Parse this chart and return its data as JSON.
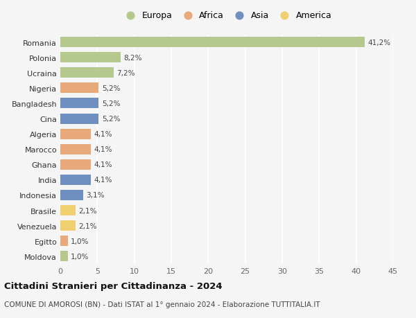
{
  "countries": [
    "Romania",
    "Polonia",
    "Ucraina",
    "Nigeria",
    "Bangladesh",
    "Cina",
    "Algeria",
    "Marocco",
    "Ghana",
    "India",
    "Indonesia",
    "Brasile",
    "Venezuela",
    "Egitto",
    "Moldova"
  ],
  "values": [
    41.2,
    8.2,
    7.2,
    5.2,
    5.2,
    5.2,
    4.1,
    4.1,
    4.1,
    4.1,
    3.1,
    2.1,
    2.1,
    1.0,
    1.0
  ],
  "labels": [
    "41,2%",
    "8,2%",
    "7,2%",
    "5,2%",
    "5,2%",
    "5,2%",
    "4,1%",
    "4,1%",
    "4,1%",
    "4,1%",
    "3,1%",
    "2,1%",
    "2,1%",
    "1,0%",
    "1,0%"
  ],
  "colors": [
    "#b5c98e",
    "#b5c98e",
    "#b5c98e",
    "#e8aa7a",
    "#6e8fc0",
    "#6e8fc0",
    "#e8aa7a",
    "#e8aa7a",
    "#e8aa7a",
    "#6e8fc0",
    "#6e8fc0",
    "#f0d070",
    "#f0d070",
    "#e8aa7a",
    "#b5c98e"
  ],
  "legend_labels": [
    "Europa",
    "Africa",
    "Asia",
    "America"
  ],
  "legend_colors": [
    "#b5c98e",
    "#e8aa7a",
    "#6e8fc0",
    "#f0d070"
  ],
  "title": "Cittadini Stranieri per Cittadinanza - 2024",
  "subtitle": "COMUNE DI AMOROSI (BN) - Dati ISTAT al 1° gennaio 2024 - Elaborazione TUTTITALIA.IT",
  "xlim": [
    0,
    45
  ],
  "xticks": [
    0,
    5,
    10,
    15,
    20,
    25,
    30,
    35,
    40,
    45
  ],
  "background_color": "#f5f5f5",
  "grid_color": "#ffffff",
  "bar_height": 0.68
}
